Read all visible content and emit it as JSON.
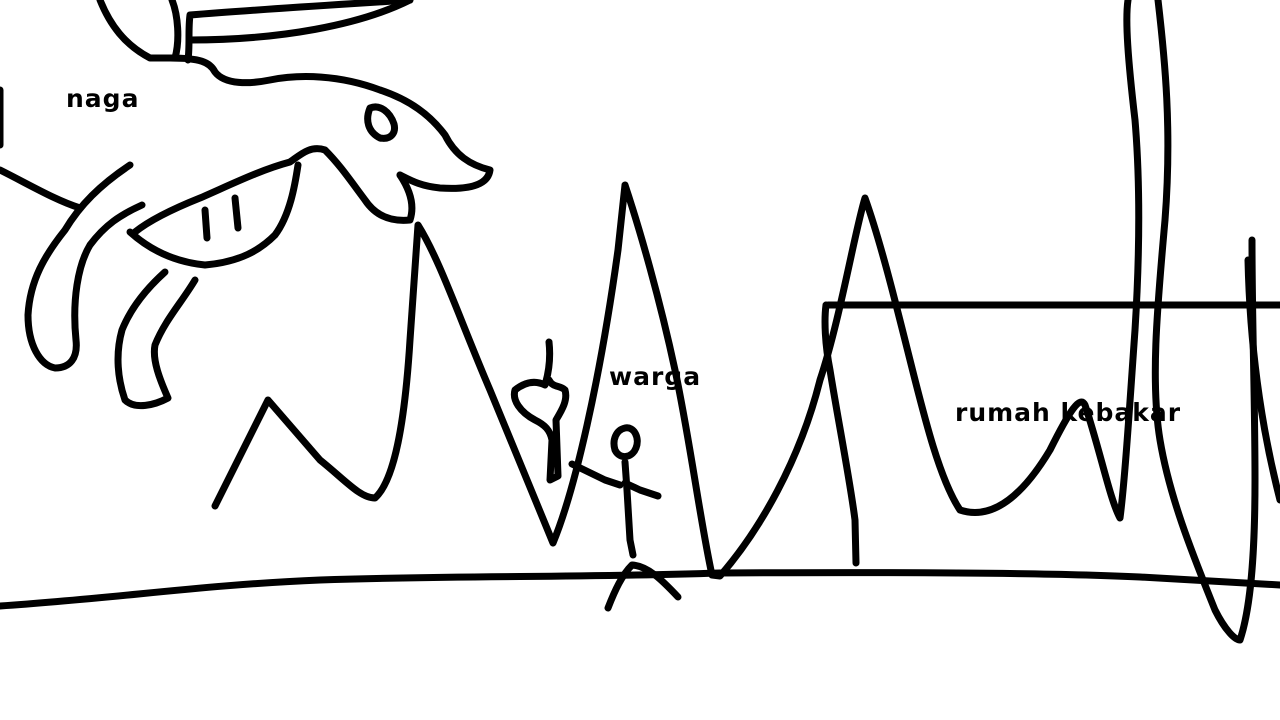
{
  "labels": {
    "dragon": "naga",
    "villager": "warga",
    "house": "rumah kebakar"
  }
}
